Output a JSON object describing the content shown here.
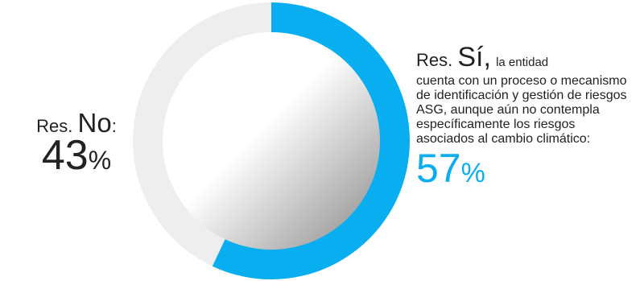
{
  "chart_data": {
    "type": "pie",
    "title": "",
    "categories": [
      "Sí",
      "No"
    ],
    "values": [
      57,
      43
    ],
    "colors": {
      "Sí": "#08aeef",
      "No": "#eeeeef"
    },
    "labels": {
      "no": {
        "prefix": "Res.",
        "name": "No",
        "suffix": ":",
        "value": "43",
        "unit": "%"
      },
      "yes": {
        "prefix": "Res.",
        "name": "Sí,",
        "lead": "la entidad",
        "text": "cuenta con un proceso o mecanismo de identificación y gestión de riesgos ASG, aunque aún no contempla específicamente los riesgos asociados al cambio climático:",
        "value": "57",
        "unit": "%"
      }
    }
  }
}
